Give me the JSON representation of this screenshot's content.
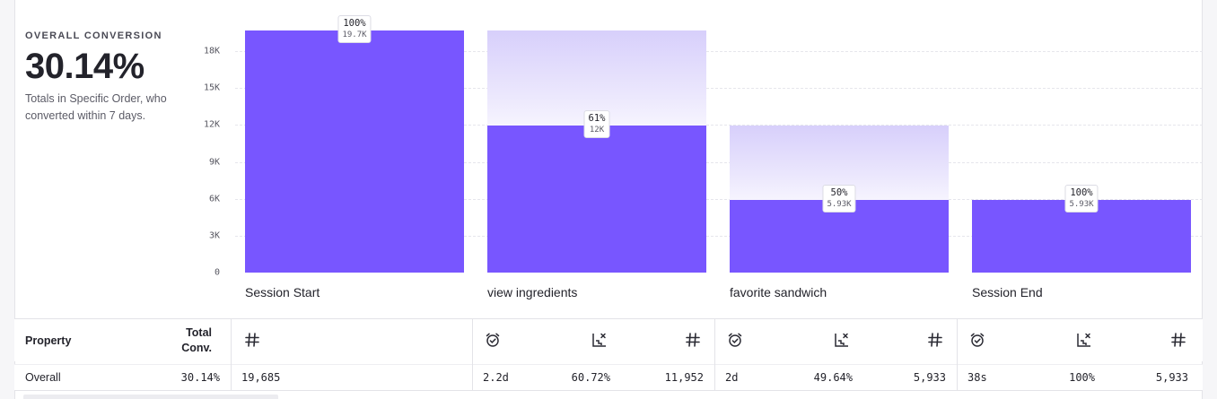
{
  "summary": {
    "label": "OVERALL CONVERSION",
    "value": "30.14%",
    "description": "Totals in Specific Order, who converted within 7 days."
  },
  "chart_data": {
    "type": "bar",
    "categories": [
      "Session Start",
      "view ingredients",
      "favorite sandwich",
      "Session End"
    ],
    "series": [
      {
        "values": [
          19685,
          11952,
          5933,
          5933
        ]
      }
    ],
    "previous_step_values": [
      19685,
      19685,
      11952,
      5933
    ],
    "data_labels": [
      {
        "pct": "100%",
        "count": "19.7K"
      },
      {
        "pct": "61%",
        "count": "12K"
      },
      {
        "pct": "50%",
        "count": "5.93K"
      },
      {
        "pct": "100%",
        "count": "5.93K"
      }
    ],
    "yticks": [
      "0",
      "3K",
      "6K",
      "9K",
      "12K",
      "15K",
      "18K"
    ],
    "ytick_values": [
      0,
      3000,
      6000,
      9000,
      12000,
      15000,
      18000
    ],
    "ylim": [
      0,
      19685
    ],
    "grid": true,
    "colors": {
      "bar": "#7856ff",
      "ghost": "#d7cffb"
    }
  },
  "table": {
    "header": {
      "property": "Property",
      "total_conv_line1": "Total",
      "total_conv_line2": "Conv."
    },
    "icons": {
      "count": "hash-icon",
      "time": "alarm-check-icon",
      "conversion": "chart-dropoff-icon"
    },
    "row": {
      "property": "Overall",
      "total_conv": "30.14%",
      "step1_count": "19,685",
      "step2_time": "2.2d",
      "step2_conv": "60.72%",
      "step2_count": "11,952",
      "step3_time": "2d",
      "step3_conv": "49.64%",
      "step3_count": "5,933",
      "step4_time": "38s",
      "step4_conv": "100%",
      "step4_count": "5,933"
    }
  }
}
